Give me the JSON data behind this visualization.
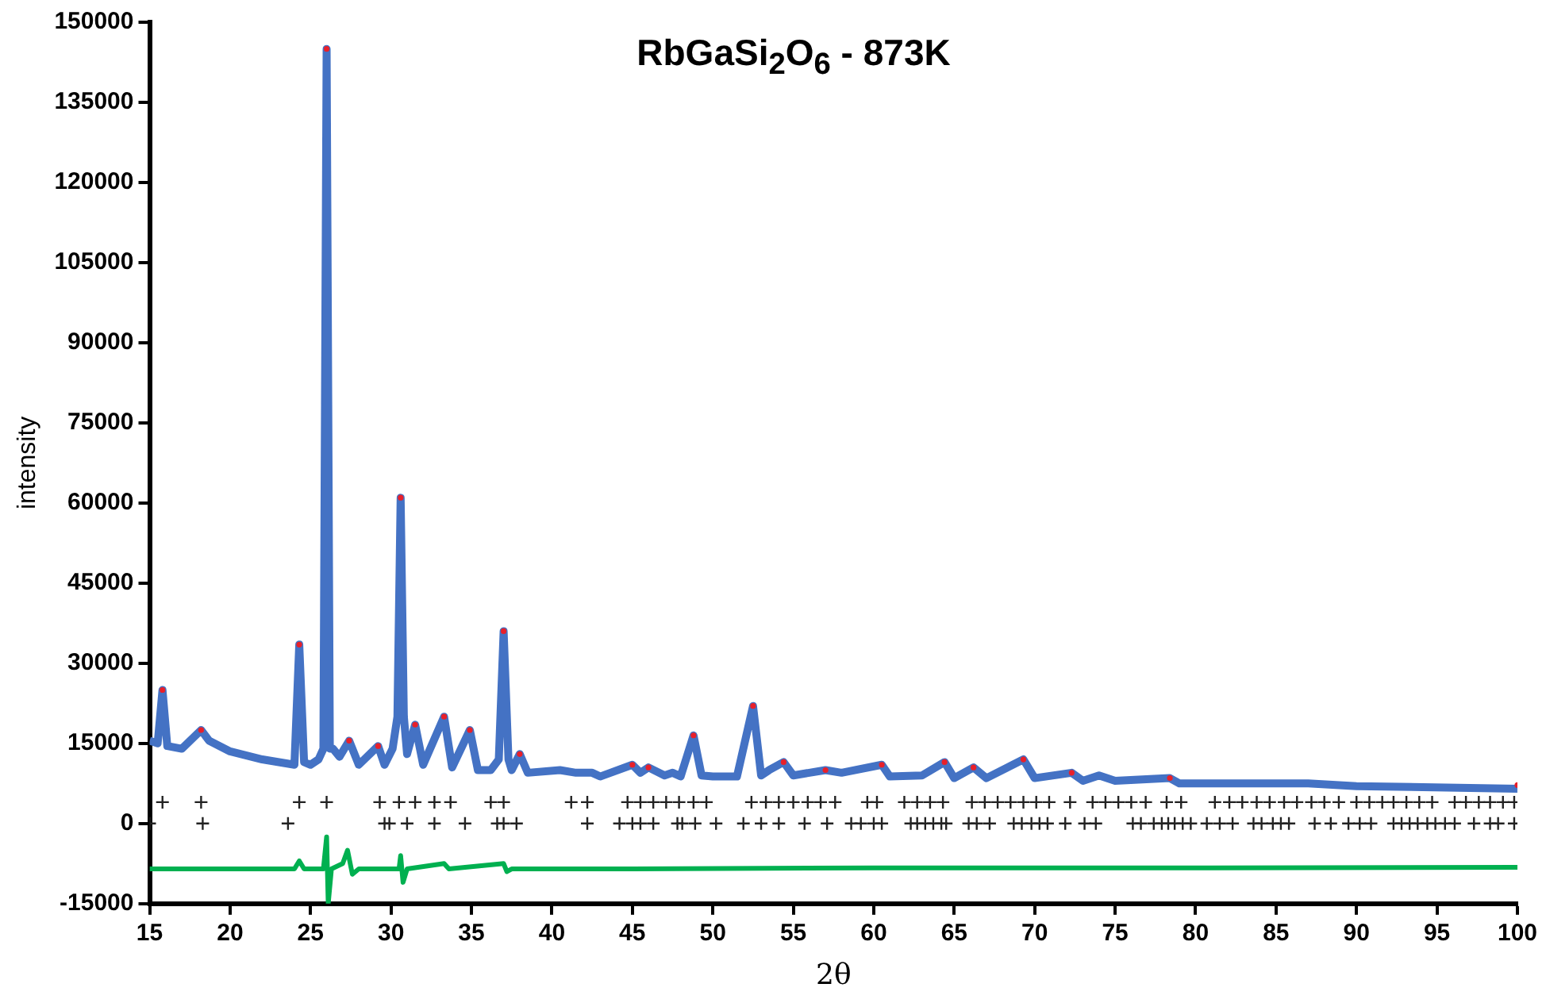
{
  "chart_data": {
    "type": "line",
    "title": "RbGaSi$_{2}$O$_{6}$ - 873K",
    "xlabel": "2θ",
    "ylabel": "intensity",
    "xlim": [
      15,
      100
    ],
    "xticks": [
      15,
      20,
      25,
      30,
      35,
      40,
      45,
      50,
      55,
      60,
      65,
      70,
      75,
      80,
      85,
      90,
      95,
      100
    ],
    "ylim": [
      -15000,
      150000
    ],
    "yticks": [
      -15000,
      0,
      15000,
      30000,
      45000,
      60000,
      75000,
      90000,
      105000,
      120000,
      135000,
      150000
    ],
    "grid": false,
    "legend": false,
    "line_style": "solid",
    "series": [
      {
        "color": "#4472c4",
        "x": [
          15,
          15.5,
          15.8,
          16.1,
          17,
          18.2,
          18.7,
          20,
          22,
          24,
          24.3,
          24.6,
          25,
          25.5,
          25.8,
          26,
          26.2,
          26.4,
          26.8,
          27.4,
          28,
          29.2,
          29.6,
          30.1,
          30.4,
          30.6,
          30.8,
          31,
          31.5,
          32,
          33.3,
          33.8,
          34.9,
          35.4,
          36.2,
          36.7,
          37,
          37.3,
          37.5,
          38,
          38.5,
          40.5,
          41.5,
          42.5,
          43,
          45,
          45.5,
          46,
          47,
          47.5,
          48,
          48.8,
          49.3,
          50,
          51.5,
          52.5,
          53,
          53.5,
          54.4,
          55,
          57,
          58,
          60.5,
          61,
          63,
          64.4,
          65,
          66.2,
          67,
          69.3,
          70,
          72.3,
          73,
          74,
          75,
          78.4,
          79,
          83,
          87,
          90,
          100
        ],
        "values": [
          15500,
          15000,
          25000,
          14500,
          14000,
          17500,
          15500,
          13500,
          12000,
          11000,
          33500,
          11500,
          11000,
          12000,
          14000,
          145000,
          14000,
          14000,
          12500,
          15500,
          11000,
          14500,
          11000,
          14000,
          20000,
          61000,
          20000,
          13000,
          18500,
          11000,
          20000,
          10500,
          17500,
          10000,
          10000,
          12000,
          36000,
          12000,
          10000,
          13000,
          9500,
          10000,
          9500,
          9500,
          8800,
          11000,
          9500,
          10500,
          9000,
          9500,
          8800,
          16500,
          9000,
          8800,
          8800,
          22000,
          9000,
          10000,
          11500,
          9000,
          10000,
          9500,
          11000,
          8800,
          9000,
          11500,
          8500,
          10500,
          8500,
          12000,
          8500,
          9500,
          8000,
          9000,
          8000,
          8500,
          7500,
          7500,
          7500,
          7000,
          6500
        ]
      },
      {
        "type": "scatter",
        "marker": "circle",
        "color": "#e8202a",
        "x": [
          15.8,
          18.2,
          24.3,
          26,
          27.4,
          29.2,
          30.6,
          31.5,
          33.3,
          34.9,
          37,
          38,
          45,
          46,
          48.8,
          52.5,
          54.4,
          57,
          60.5,
          64.4,
          66.2,
          69.3,
          72.3,
          78.4,
          100
        ],
        "values": [
          25000,
          17500,
          33500,
          145000,
          15500,
          14500,
          61000,
          18500,
          20000,
          17500,
          36000,
          13000,
          11000,
          10500,
          16500,
          22000,
          11500,
          10000,
          11000,
          11500,
          10500,
          12000,
          9500,
          8500,
          7200
        ]
      },
      {
        "type": "line",
        "color": "#00b050",
        "x": [
          15,
          20,
          24,
          24.3,
          24.6,
          25.8,
          26,
          26.1,
          26.3,
          27,
          27.3,
          27.6,
          28,
          30.5,
          30.6,
          30.75,
          31,
          33.3,
          33.6,
          37,
          37.2,
          37.5,
          45,
          60,
          80,
          100
        ],
        "values": [
          -8500,
          -8500,
          -8500,
          -7000,
          -8500,
          -8500,
          -2500,
          -15000,
          -8500,
          -7500,
          -5000,
          -9500,
          -8500,
          -8500,
          -6000,
          -11000,
          -8500,
          -7500,
          -8500,
          -7500,
          -9000,
          -8500,
          -8500,
          -8300,
          -8300,
          -8200
        ]
      },
      {
        "type": "scatter",
        "marker": "cross",
        "color": "#222222",
        "x": [
          15.8,
          18.2,
          24.3,
          26,
          29.3,
          30.5,
          31.5,
          32.7,
          33.7,
          36.2,
          37,
          41.2,
          42.2,
          44.7,
          45.5,
          46.3,
          47.1,
          47.9,
          48.8,
          49.6,
          52.4,
          53.3,
          54.1,
          55,
          55.9,
          56.7,
          57.6,
          59.6,
          60.2,
          61.9,
          62.7,
          63.5,
          64.3,
          66.1,
          66.9,
          67.7,
          68.5,
          69.3,
          70.1,
          70.9,
          72.2,
          73.6,
          74.4,
          75.2,
          76,
          76.9,
          78.2,
          79.1,
          81.2,
          82.1,
          82.9,
          83.8,
          84.6,
          85.5,
          86.3,
          87.2,
          88,
          88.9,
          90,
          90.8,
          91.6,
          92.3,
          93.1,
          93.9,
          94.7,
          96.1,
          96.8,
          97.6,
          98.3,
          99.1,
          99.8
        ],
        "values": [
          4000,
          4000,
          4000,
          4000,
          4000,
          4000,
          4000,
          4000,
          4000,
          4000,
          4000,
          4000,
          4000,
          4000,
          4000,
          4000,
          4000,
          4000,
          4000,
          4000,
          4000,
          4000,
          4000,
          4000,
          4000,
          4000,
          4000,
          4000,
          4000,
          4000,
          4000,
          4000,
          4000,
          4000,
          4000,
          4000,
          4000,
          4000,
          4000,
          4000,
          4000,
          4000,
          4000,
          4000,
          4000,
          4000,
          4000,
          4000,
          4000,
          4000,
          4000,
          4000,
          4000,
          4000,
          4000,
          4000,
          4000,
          4000,
          4000,
          4000,
          4000,
          4000,
          4000,
          4000,
          4000,
          4000,
          4000,
          4000,
          4000,
          4000,
          4000
        ]
      },
      {
        "type": "scatter",
        "marker": "cross",
        "color": "#222222",
        "x": [
          15,
          18.3,
          23.6,
          29.6,
          29.9,
          31,
          32.7,
          34.6,
          36.6,
          37,
          37.8,
          42.2,
          44.2,
          45,
          45.5,
          46.3,
          47.8,
          48.1,
          48.9,
          50.2,
          51.9,
          53,
          54.1,
          55.7,
          57.1,
          58.6,
          59.2,
          60,
          60.5,
          62.3,
          62.7,
          63.2,
          63.7,
          64.2,
          64.5,
          65.9,
          66.4,
          67.2,
          68.7,
          69.2,
          69.8,
          70.3,
          70.8,
          71.9,
          73.1,
          73.8,
          76.1,
          76.6,
          77.4,
          77.9,
          78.3,
          78.7,
          79.2,
          79.7,
          80.7,
          81.5,
          82.3,
          83.6,
          84.1,
          84.8,
          85.3,
          85.8,
          87.4,
          88.4,
          89.5,
          90.2,
          90.9,
          92.3,
          92.8,
          93.3,
          93.8,
          94.4,
          94.9,
          95.5,
          96.1,
          97.3,
          98.3,
          98.8,
          99.8
        ],
        "values": [
          0,
          0,
          0,
          0,
          0,
          0,
          0,
          0,
          0,
          0,
          0,
          0,
          0,
          0,
          0,
          0,
          0,
          0,
          0,
          0,
          0,
          0,
          0,
          0,
          0,
          0,
          0,
          0,
          0,
          0,
          0,
          0,
          0,
          0,
          0,
          0,
          0,
          0,
          0,
          0,
          0,
          0,
          0,
          0,
          0,
          0,
          0,
          0,
          0,
          0,
          0,
          0,
          0,
          0,
          0,
          0,
          0,
          0,
          0,
          0,
          0,
          0,
          0,
          0,
          0,
          0,
          0,
          0,
          0,
          0,
          0,
          0,
          0,
          0,
          0,
          0,
          0,
          0,
          0
        ]
      }
    ]
  }
}
